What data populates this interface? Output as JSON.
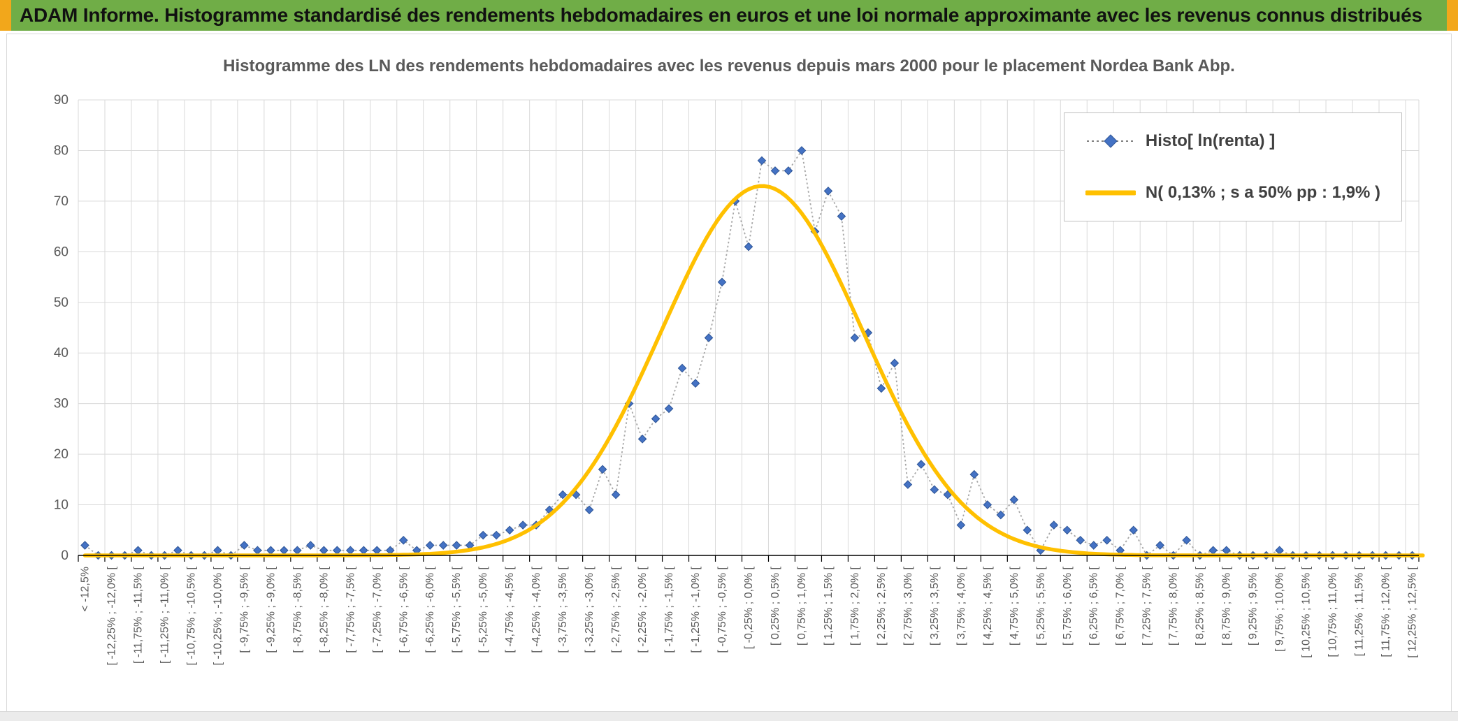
{
  "banner": {
    "title": "ADAM Informe. Histogramme standardisé des rendements hebdomadaires en euros et une loi normale approximante avec les revenus connus distribués",
    "bg_color": "#70AD47",
    "accent_color": "#F2A71B"
  },
  "chart_data": {
    "type": "line",
    "title": "Histogramme des LN des rendements hebdomadaires avec les revenus depuis mars 2000 pour le placement Nordea Bank Abp.",
    "ylim": [
      0,
      90
    ],
    "y_ticks": [
      0,
      10,
      20,
      30,
      40,
      50,
      60,
      70,
      80,
      90
    ],
    "grid": true,
    "legend_position": "top-right",
    "x_axis": {
      "first_label": "< -12,5%",
      "bin_width_pct": 0.25,
      "range_pct": [
        -12.5,
        12.5
      ],
      "label_interval_bins": 2,
      "visible_labels": [
        "[ -12,25% ; -12,0% [",
        "[ -11,75% ; -11,5% [",
        "[ -11,25% ; -11,0% [",
        "[ -10,75% ; -10,5% [",
        "[ -10,25% ; -10,0% [",
        "[ -9,75% ; -9,5% [",
        "[ -9,25% ; -9,0% [",
        "[ -8,75% ; -8,5% [",
        "[ -8,25% ; -8,0% [",
        "[ -7,75% ; -7,5% [",
        "[ -7,25% ; -7,0% [",
        "[ -6,75% ; -6,5% [",
        "[ -6,25% ; -6,0% [",
        "[ -5,75% ; -5,5% [",
        "[ -5,25% ; -5,0% [",
        "[ -4,75% ; -4,5% [",
        "[ -4,25% ; -4,0% [",
        "[ -3,75% ; -3,5% [",
        "[ -3,25% ; -3,0% [",
        "[ -2,75% ; -2,5% [",
        "[ -2,25% ; -2,0% [",
        "[ -1,75% ; -1,5% [",
        "[ -1,25% ; -1,0% [",
        "[ -0,75% ; -0,5% [",
        "[ -0,25% ; 0,0% [",
        "[ 0,25% ; 0,5% [",
        "[ 0,75% ; 1,0% [",
        "[ 1,25% ; 1,5% [",
        "[ 1,75% ; 2,0% [",
        "[ 2,25% ; 2,5% [",
        "[ 2,75% ; 3,0% [",
        "[ 3,25% ; 3,5% [",
        "[ 3,75% ; 4,0% [",
        "[ 4,25% ; 4,5% [",
        "[ 4,75% ; 5,0% [",
        "[ 5,25% ; 5,5% [",
        "[ 5,75% ; 6,0% [",
        "[ 6,25% ; 6,5% [",
        "[ 6,75% ; 7,0% [",
        "[ 7,25% ; 7,5% [",
        "[ 7,75% ; 8,0% [",
        "[ 8,25% ; 8,5% [",
        "[ 8,75% ; 9,0% [",
        "[ 9,25% ; 9,5% [",
        "[ 9,75% ; 10,0% [",
        "[ 10,25% ; 10,5% [",
        "[ 10,75% ; 11,0% [",
        "[ 11,25% ; 11,5% [",
        "[ 11,75% ; 12,0% [",
        "[ 12,25% ; 12,5% ["
      ]
    },
    "series": [
      {
        "name": "Histo[ ln(renta) ]",
        "marker": "diamond",
        "color": "#4472C4",
        "marker_edge_color": "#2E5596",
        "line_color": "#A6A6A6",
        "line_style": "dotted",
        "values": [
          2,
          0,
          0,
          0,
          1,
          0,
          0,
          1,
          0,
          0,
          1,
          0,
          2,
          1,
          1,
          1,
          1,
          2,
          1,
          1,
          1,
          1,
          1,
          1,
          3,
          1,
          2,
          2,
          2,
          2,
          4,
          4,
          5,
          6,
          6,
          9,
          12,
          12,
          9,
          17,
          12,
          30,
          23,
          27,
          29,
          37,
          34,
          43,
          54,
          70,
          61,
          78,
          76,
          76,
          80,
          64,
          72,
          67,
          43,
          44,
          33,
          38,
          14,
          18,
          13,
          12,
          6,
          16,
          10,
          8,
          11,
          5,
          1,
          6,
          5,
          3,
          2,
          3,
          1,
          5,
          0,
          2,
          0,
          3,
          0,
          1,
          1,
          0,
          0,
          0,
          1,
          0,
          0,
          0,
          0,
          0,
          0,
          0,
          0,
          0,
          0
        ]
      },
      {
        "name": "N( 0,13% ; s a 50% pp : 1,9% )",
        "type": "normal-curve",
        "color": "#FFC000",
        "mean_pct": 0.13,
        "sd_pct": 1.9,
        "peak": 73
      }
    ]
  }
}
